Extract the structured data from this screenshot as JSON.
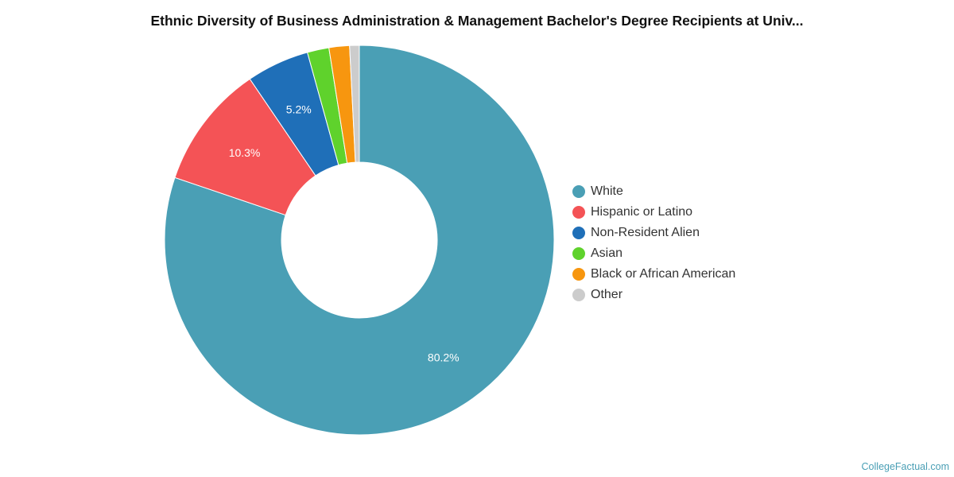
{
  "title": "Ethnic Diversity of Business Administration & Management Bachelor's Degree Recipients at Univ...",
  "credit": "CollegeFactual.com",
  "chart_data": {
    "type": "pie",
    "donut": true,
    "title": "Ethnic Diversity of Business Administration & Management Bachelor's Degree Recipients at Univ...",
    "legend_position": "right",
    "slices": [
      {
        "name": "White",
        "value": 80.2,
        "label": "80.2%",
        "color": "#4a9fb5"
      },
      {
        "name": "Hispanic or Latino",
        "value": 10.3,
        "label": "10.3%",
        "color": "#f45356"
      },
      {
        "name": "Non-Resident Alien",
        "value": 5.2,
        "label": "5.2%",
        "color": "#1f6fb8"
      },
      {
        "name": "Asian",
        "value": 1.8,
        "label": "",
        "color": "#5fd22c"
      },
      {
        "name": "Black or African American",
        "value": 1.7,
        "label": "",
        "color": "#f7960f"
      },
      {
        "name": "Other",
        "value": 0.8,
        "label": "",
        "color": "#cccccc"
      }
    ]
  }
}
